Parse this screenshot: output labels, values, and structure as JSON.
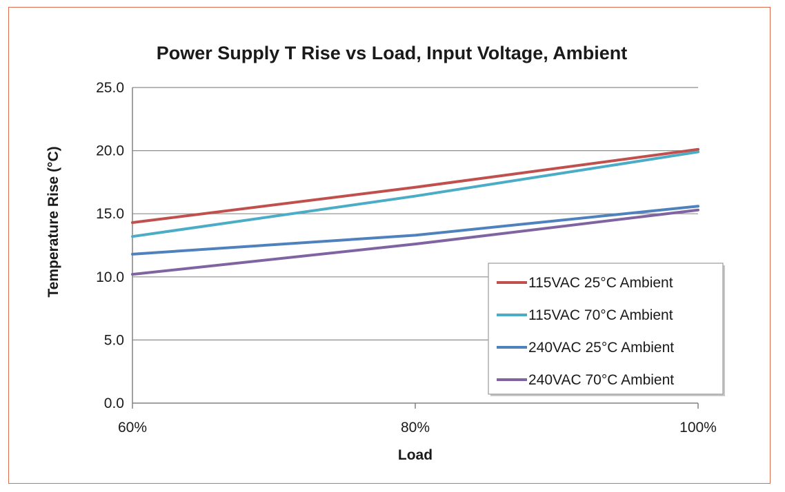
{
  "chart_data": {
    "type": "line",
    "title": "Power Supply T Rise vs Load, Input Voltage, Ambient",
    "xlabel": "Load",
    "ylabel": "Temperature Rise (°C)",
    "x": [
      60,
      80,
      100
    ],
    "x_tick_labels": [
      "60%",
      "80%",
      "100%"
    ],
    "y_ticks": [
      0,
      5,
      10,
      15,
      20,
      25
    ],
    "y_tick_labels": [
      "0.0",
      "5.0",
      "10.0",
      "15.0",
      "20.0",
      "25.0"
    ],
    "xlim": [
      60,
      100
    ],
    "ylim": [
      0,
      25
    ],
    "grid": true,
    "legend_position": "bottom-right",
    "series": [
      {
        "name": "115VAC 25°C Ambient",
        "color": "#c0504d",
        "values": [
          14.3,
          17.1,
          20.1
        ]
      },
      {
        "name": "115VAC 70°C Ambient",
        "color": "#4bacc6",
        "values": [
          13.2,
          16.4,
          19.9
        ]
      },
      {
        "name": "240VAC 25°C Ambient",
        "color": "#4f81bd",
        "values": [
          11.8,
          13.3,
          15.6
        ]
      },
      {
        "name": "240VAC 70°C Ambient",
        "color": "#8064a2",
        "values": [
          10.2,
          12.6,
          15.3
        ]
      }
    ]
  }
}
